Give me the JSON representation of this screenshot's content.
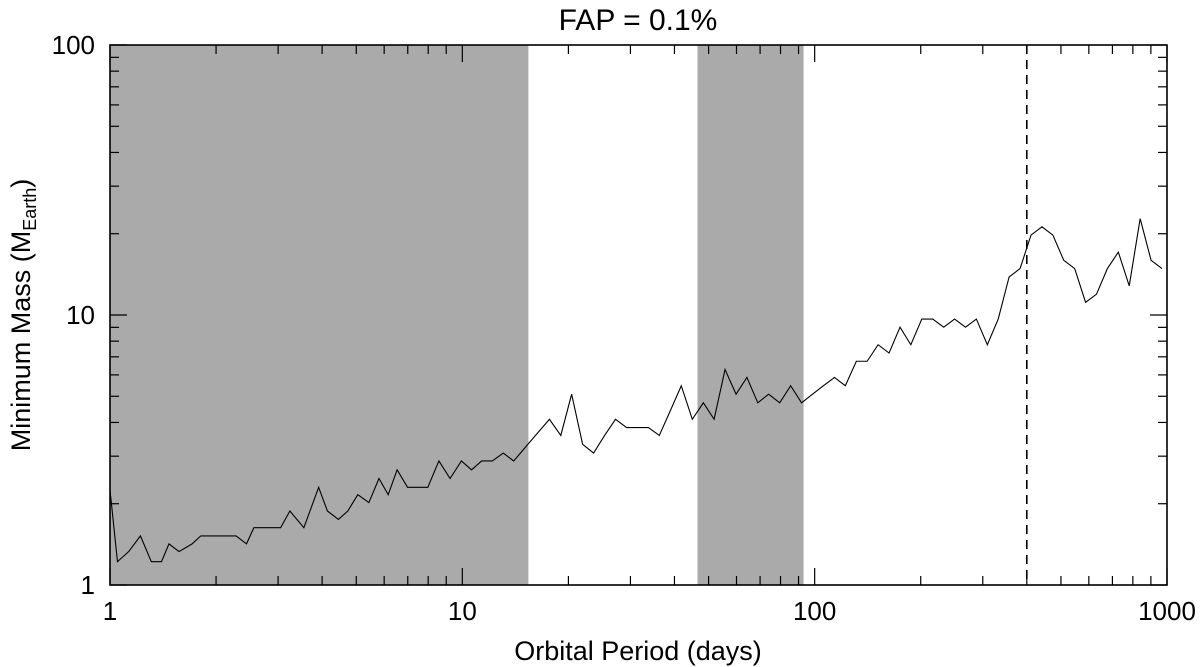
{
  "chart_data": {
    "type": "line",
    "title": "FAP = 0.1%",
    "xlabel": "Orbital Period (days)",
    "ylabel": "Minimum Mass (M",
    "ylabel_sub": "Earth",
    "ylabel_close": ")",
    "xscale": "log",
    "yscale": "log",
    "xlim": [
      1,
      1000
    ],
    "ylim": [
      1,
      100
    ],
    "x_ticks": [
      {
        "value": 1,
        "label": "1"
      },
      {
        "value": 10,
        "label": "10"
      },
      {
        "value": 100,
        "label": "100"
      },
      {
        "value": 1000,
        "label": "1000"
      }
    ],
    "y_ticks": [
      {
        "value": 1,
        "label": "1"
      },
      {
        "value": 10,
        "label": "10"
      },
      {
        "value": 100,
        "label": "100"
      }
    ],
    "grid": false,
    "shaded_regions": [
      {
        "x_start": 1,
        "x_end": 15.4,
        "color": "#aaaaaa"
      },
      {
        "x_start": 46.5,
        "x_end": 93,
        "color": "#aaaaaa"
      }
    ],
    "vertical_lines": [
      {
        "x": 400,
        "style": "dashed"
      }
    ],
    "series": [
      {
        "x": [
          1.0,
          1.05,
          1.13,
          1.22,
          1.31,
          1.4,
          1.47,
          1.57,
          1.71,
          1.81,
          1.94,
          2.13,
          2.28,
          2.44,
          2.56,
          2.7,
          3.05,
          3.24,
          3.55,
          3.91,
          4.14,
          4.45,
          4.73,
          5.05,
          5.43,
          5.8,
          6.16,
          6.53,
          6.99,
          7.47,
          7.98,
          8.58,
          9.23,
          9.94,
          10.62,
          11.35,
          12.17,
          13.07,
          13.99,
          15.35,
          17.67,
          19.03,
          20.43,
          21.95,
          23.58,
          25.34,
          27.21,
          29.25,
          31.44,
          33.74,
          36.23,
          38.9,
          41.82,
          44.95,
          48.32,
          51.83,
          55.67,
          59.83,
          64.22,
          68.96,
          74.04,
          79.58,
          85.49,
          91.79,
          98.63,
          105.9,
          113.8,
          122.2,
          131.3,
          140.9,
          151.4,
          162.6,
          174.7,
          187.5,
          201.4,
          216.3,
          232.4,
          249.5,
          268.0,
          287.7,
          309.1,
          331.9,
          356.4,
          382.8,
          411.2,
          441.6,
          474.3,
          509.3,
          547.0,
          587.4,
          630.8,
          677.4,
          727.6,
          781.3,
          839.1,
          901.1,
          967.7
        ],
        "y": [
          2.25,
          1.22,
          1.33,
          1.52,
          1.22,
          1.22,
          1.42,
          1.33,
          1.42,
          1.52,
          1.52,
          1.52,
          1.52,
          1.42,
          1.63,
          1.63,
          1.63,
          1.88,
          1.63,
          2.3,
          1.88,
          1.75,
          1.88,
          2.16,
          2.02,
          2.48,
          2.16,
          2.67,
          2.3,
          2.3,
          2.3,
          2.88,
          2.48,
          2.88,
          2.67,
          2.88,
          2.88,
          3.08,
          2.88,
          3.32,
          4.11,
          3.58,
          5.09,
          3.32,
          3.08,
          3.58,
          4.11,
          3.83,
          3.83,
          3.83,
          3.58,
          4.41,
          5.47,
          4.11,
          4.73,
          4.11,
          6.28,
          5.09,
          5.87,
          4.73,
          5.09,
          4.73,
          5.47,
          4.73,
          5.09,
          5.47,
          5.87,
          5.47,
          6.74,
          6.74,
          7.76,
          7.23,
          9.01,
          7.76,
          9.66,
          9.66,
          9.01,
          9.66,
          9.01,
          9.66,
          7.76,
          9.66,
          13.84,
          14.86,
          19.77,
          21.21,
          19.77,
          15.94,
          14.86,
          11.14,
          11.94,
          14.86,
          17.1,
          12.82,
          22.75,
          15.94,
          14.86
        ]
      }
    ]
  }
}
